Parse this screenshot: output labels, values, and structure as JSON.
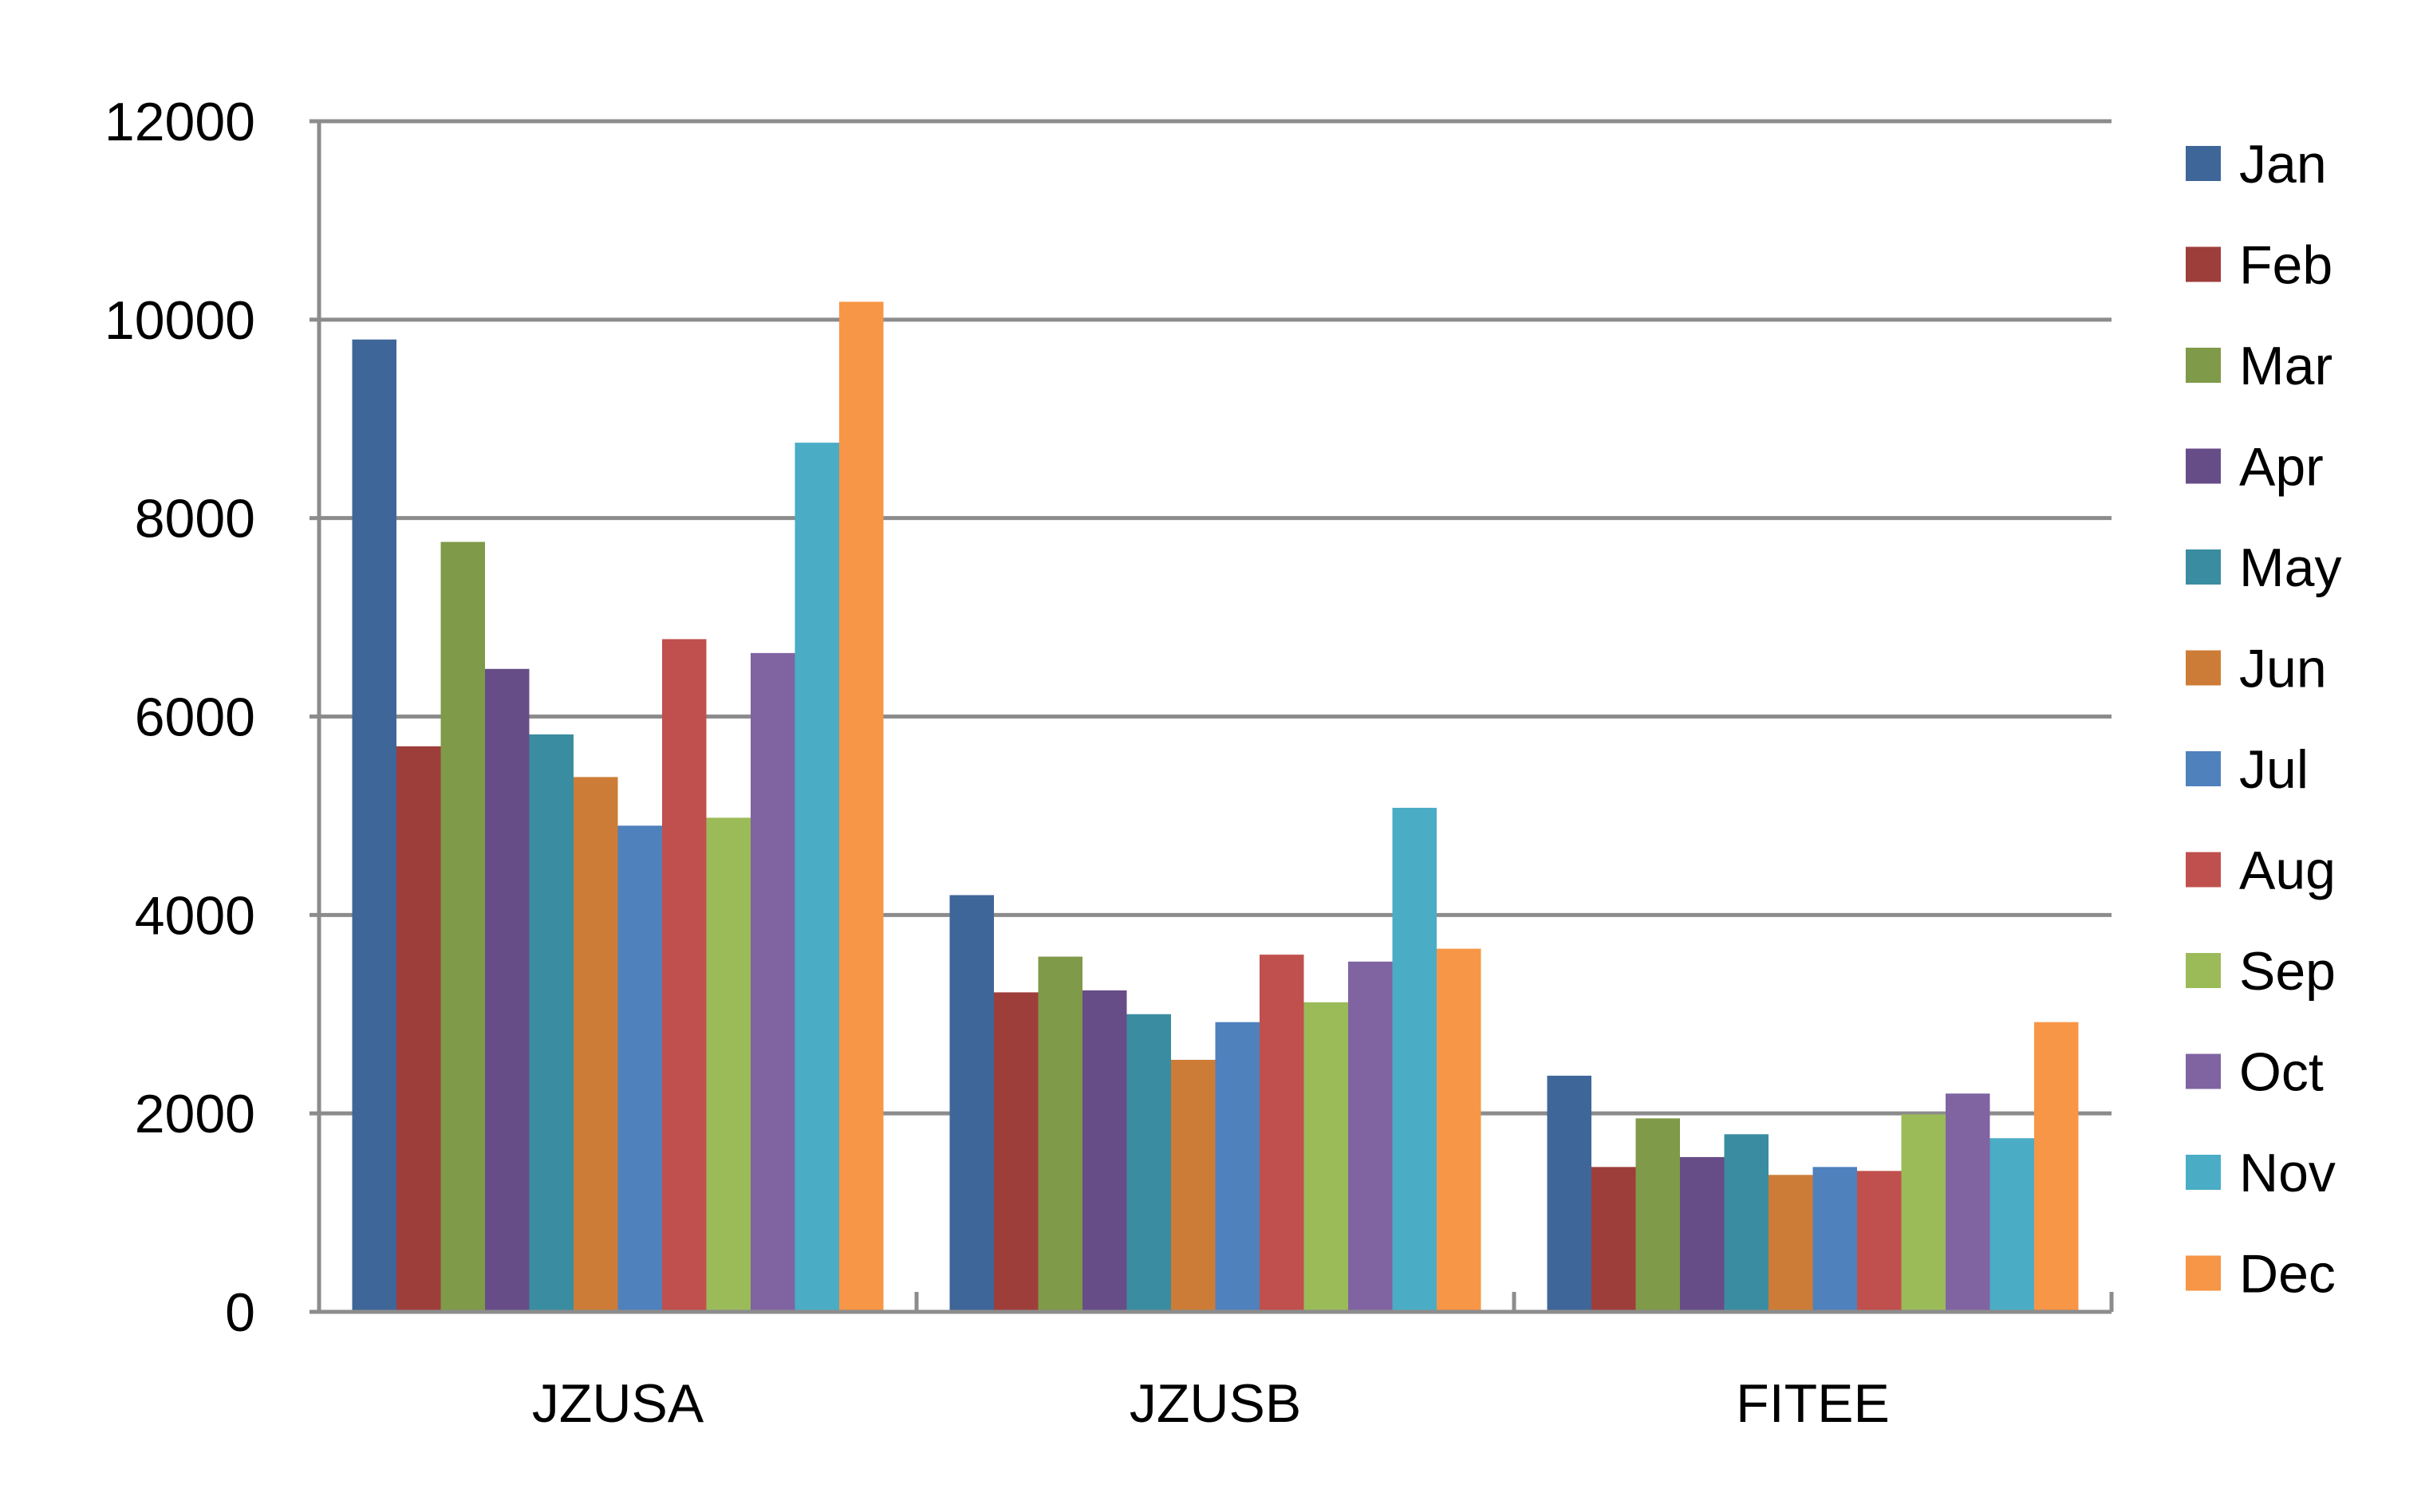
{
  "chart_data": {
    "type": "bar",
    "title": "",
    "xlabel": "",
    "ylabel": "",
    "categories": [
      "JZUSA",
      "JZUSB",
      "FITEE"
    ],
    "ylim": [
      0,
      12000
    ],
    "yticks": [
      "0",
      "2000",
      "4000",
      "6000",
      "8000",
      "10000",
      "12000"
    ],
    "grid": true,
    "legend_position": "right",
    "series": [
      {
        "name": "Jan",
        "color": "#3F6699",
        "values": [
          9800,
          4200,
          2380
        ]
      },
      {
        "name": "Feb",
        "color": "#9E3E3B",
        "values": [
          5700,
          3220,
          1460
        ]
      },
      {
        "name": "Mar",
        "color": "#7F9A48",
        "values": [
          7760,
          3580,
          1950
        ]
      },
      {
        "name": "Apr",
        "color": "#674D88",
        "values": [
          6480,
          3240,
          1560
        ]
      },
      {
        "name": "May",
        "color": "#3A8DA0",
        "values": [
          5820,
          3000,
          1790
        ]
      },
      {
        "name": "Jun",
        "color": "#CD7C37",
        "values": [
          5390,
          2540,
          1380
        ]
      },
      {
        "name": "Jul",
        "color": "#4F81BD",
        "values": [
          4900,
          2920,
          1460
        ]
      },
      {
        "name": "Aug",
        "color": "#C0504D",
        "values": [
          6780,
          3600,
          1420
        ]
      },
      {
        "name": "Sep",
        "color": "#9BBB59",
        "values": [
          4980,
          3120,
          1990
        ]
      },
      {
        "name": "Oct",
        "color": "#8064A2",
        "values": [
          6640,
          3530,
          2200
        ]
      },
      {
        "name": "Nov",
        "color": "#4BACC6",
        "values": [
          8760,
          5080,
          1750
        ]
      },
      {
        "name": "Dec",
        "color": "#F79646",
        "values": [
          10180,
          3660,
          2920
        ]
      }
    ]
  }
}
